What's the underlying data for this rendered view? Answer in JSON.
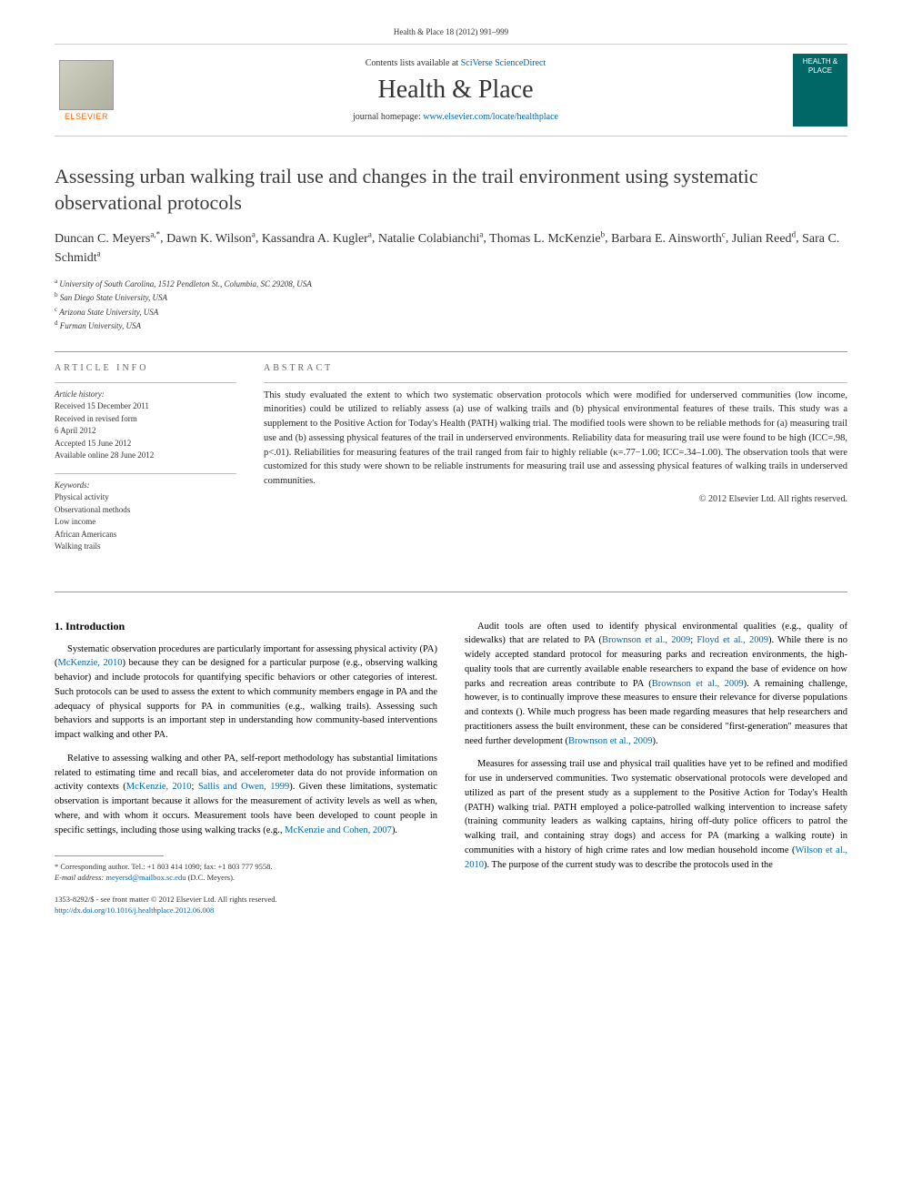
{
  "header": {
    "citation": "Health & Place 18 (2012) 991–999",
    "contents_prefix": "Contents lists available at ",
    "contents_link": "SciVerse ScienceDirect",
    "journal_name": "Health & Place",
    "homepage_prefix": "journal homepage: ",
    "homepage_link": "www.elsevier.com/locate/healthplace",
    "elsevier_label": "ELSEVIER",
    "cover_text": "HEALTH & PLACE"
  },
  "title": "Assessing urban walking trail use and changes in the trail environment using systematic observational protocols",
  "authors_html": "Duncan C. Meyers",
  "authors": [
    {
      "name": "Duncan C. Meyers",
      "sup": "a,*"
    },
    {
      "name": "Dawn K. Wilson",
      "sup": "a"
    },
    {
      "name": "Kassandra A. Kugler",
      "sup": "a"
    },
    {
      "name": "Natalie Colabianchi",
      "sup": "a"
    },
    {
      "name": "Thomas L. McKenzie",
      "sup": "b"
    },
    {
      "name": "Barbara E. Ainsworth",
      "sup": "c"
    },
    {
      "name": "Julian Reed",
      "sup": "d"
    },
    {
      "name": "Sara C. Schmidt",
      "sup": "a"
    }
  ],
  "affiliations": [
    {
      "sup": "a",
      "text": "University of South Carolina, 1512 Pendleton St., Columbia, SC 29208, USA"
    },
    {
      "sup": "b",
      "text": "San Diego State University, USA"
    },
    {
      "sup": "c",
      "text": "Arizona State University, USA"
    },
    {
      "sup": "d",
      "text": "Furman University, USA"
    }
  ],
  "info": {
    "header": "ARTICLE INFO",
    "history_label": "Article history:",
    "history": [
      "Received 15 December 2011",
      "Received in revised form",
      "6 April 2012",
      "Accepted 15 June 2012",
      "Available online 28 June 2012"
    ],
    "keywords_label": "Keywords:",
    "keywords": [
      "Physical activity",
      "Observational methods",
      "Low income",
      "African Americans",
      "Walking trails"
    ]
  },
  "abstract": {
    "header": "ABSTRACT",
    "text": "This study evaluated the extent to which two systematic observation protocols which were modified for underserved communities (low income, minorities) could be utilized to reliably assess (a) use of walking trails and (b) physical environmental features of these trails. This study was a supplement to the Positive Action for Today's Health (PATH) walking trial. The modified tools were shown to be reliable methods for (a) measuring trail use and (b) assessing physical features of the trail in underserved environments. Reliability data for measuring trail use were found to be high (ICC=.98, p<.01). Reliabilities for measuring features of the trail ranged from fair to highly reliable (κ=.77−1.00; ICC=.34–1.00). The observation tools that were customized for this study were shown to be reliable instruments for measuring trail use and assessing physical features of walking trails in underserved communities.",
    "copyright": "© 2012 Elsevier Ltd. All rights reserved."
  },
  "body": {
    "section_title": "1.  Introduction",
    "col1": [
      {
        "text": "Systematic observation procedures are particularly important for assessing physical activity (PA) (",
        "link": "McKenzie, 2010",
        "after": ") because they can be designed for a particular purpose (e.g., observing walking behavior) and include protocols for quantifying specific behaviors or other categories of interest. Such protocols can be used to assess the extent to which community members engage in PA and the adequacy of physical supports for PA in communities (e.g., walking trails). Assessing such behaviors and supports is an important step in understanding how community-based interventions impact walking and other PA."
      },
      {
        "text": "Relative to assessing walking and other PA, self-report methodology has substantial limitations related to estimating time and recall bias, and accelerometer data do not provide information on activity contexts (",
        "link": "McKenzie, 2010",
        "link2": "Sallis and Owen, 1999",
        "after": "). Given these limitations, systematic observation is important because it allows for the measurement of activity levels as well as when, where, and with whom it occurs. Measurement tools have been developed to count people in specific settings, including those using walking tracks (e.g., ",
        "link3": "McKenzie and Cohen, 2007",
        "after2": ")."
      }
    ],
    "col2": [
      {
        "text": "Audit tools are often used to identify physical environmental qualities (e.g., quality of sidewalks) that are related to PA (",
        "link": "Brownson et al., 2009",
        "after": "). While there is no widely accepted standard protocol for measuring parks and recreation environments, the high-quality tools that are currently available enable researchers to expand the base of evidence on how parks and recreation areas contribute to PA (",
        "link2": "Floyd et al., 2009",
        "after2": "). A remaining challenge, however, is to continually improve these measures to ensure their relevance for diverse populations and contexts (",
        "link3": "Brownson et al., 2009",
        "after3": "). While much progress has been made regarding measures that help researchers and practitioners assess the built environment, these can be considered \"first-generation\" measures that need further development (",
        "link4": "Brownson et al., 2009",
        "after4": ")."
      },
      {
        "text": "Measures for assessing trail use and physical trail qualities have yet to be refined and modified for use in underserved communities. Two systematic observational protocols were developed and utilized as part of the present study as a supplement to the Positive Action for Today's Health (PATH) walking trial. PATH employed a police-patrolled walking intervention to increase safety (training community leaders as walking captains, hiring off-duty police officers to patrol the walking trail, and containing stray dogs) and access for PA (marking a walking route) in communities with a history of high crime rates and low median household income (",
        "link": "Wilson et al., 2010",
        "after": "). The purpose of the current study was to describe the protocols used in the"
      }
    ]
  },
  "footnote": {
    "corr": "* Corresponding author. Tel.: +1 803 414 1090; fax: +1 803 777 9558.",
    "email_label": "E-mail address: ",
    "email": "meyersd@mailbox.sc.edu",
    "email_after": " (D.C. Meyers)."
  },
  "bottom": {
    "issn": "1353-8292/$ - see front matter © 2012 Elsevier Ltd. All rights reserved.",
    "doi": "http://dx.doi.org/10.1016/j.healthplace.2012.06.008"
  }
}
